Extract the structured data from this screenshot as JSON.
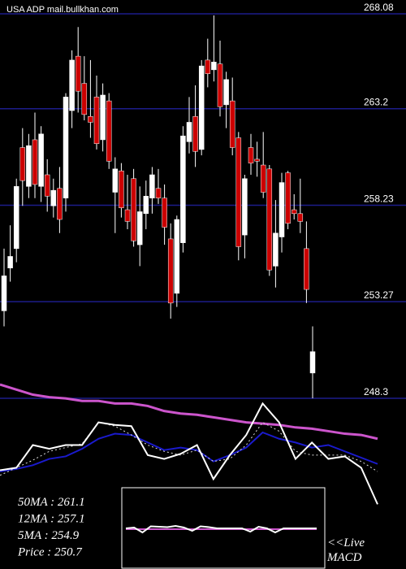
{
  "chart_data": [
    {
      "type": "candlestick",
      "title": "USA ADP mail.bullkhan.com",
      "open": [
        252.8,
        255.0,
        256.0,
        261.2,
        259.2,
        261.6,
        259.2,
        259.8,
        258.2,
        259.1,
        258.6,
        263.1,
        265.9,
        264.5,
        262.8,
        263.8,
        261.6,
        263.6,
        258.9,
        260.0,
        258.0,
        259.6,
        256.2,
        257.8,
        258.6,
        259.1,
        258.6,
        256.5,
        253.7,
        256.3,
        261.5,
        262.8,
        261.1,
        265.7,
        265.2,
        265.5,
        263.4,
        263.6,
        261.7,
        256.7,
        261.2,
        260.6,
        260.3,
        260.1,
        255.1,
        256.6,
        259.9,
        258.0,
        257.8,
        256.0,
        249.6
      ],
      "high": [
        256.0,
        257.2,
        259.6,
        262.2,
        261.9,
        263.0,
        262.3,
        260.6,
        259.6,
        260.2,
        264.0,
        266.2,
        267.4,
        265.9,
        265.7,
        264.9,
        264.5,
        264.0,
        260.7,
        260.4,
        259.8,
        260.1,
        259.2,
        259.5,
        260.2,
        260.1,
        259.3,
        257.3,
        257.7,
        262.3,
        263.8,
        264.4,
        265.7,
        266.8,
        268.0,
        266.7,
        265.1,
        264.8,
        262.0,
        259.8,
        261.9,
        261.5,
        262.0,
        260.3,
        258.5,
        259.9,
        260.0,
        258.8,
        259.6,
        257.4,
        252.0
      ],
      "low": [
        252.0,
        254.3,
        255.3,
        258.2,
        258.6,
        258.6,
        258.4,
        257.9,
        257.6,
        256.8,
        257.9,
        262.2,
        263.0,
        262.6,
        261.7,
        261.1,
        261.0,
        260.1,
        256.8,
        257.6,
        257.0,
        256.1,
        255.1,
        257.0,
        257.8,
        258.3,
        256.2,
        252.4,
        253.0,
        255.8,
        260.9,
        260.2,
        260.8,
        264.3,
        264.6,
        262.8,
        262.2,
        260.8,
        255.4,
        255.5,
        259.8,
        259.7,
        258.6,
        254.6,
        254.0,
        255.8,
        257.0,
        257.5,
        256.8,
        253.2,
        248.3
      ],
      "close": [
        254.6,
        255.6,
        259.2,
        259.5,
        261.3,
        259.3,
        261.9,
        258.7,
        259.0,
        257.5,
        263.8,
        265.7,
        264.1,
        262.9,
        262.5,
        261.4,
        263.9,
        260.5,
        260.1,
        258.1,
        257.4,
        256.4,
        257.9,
        258.7,
        259.8,
        258.6,
        257.1,
        253.2,
        257.5,
        261.8,
        262.5,
        261.0,
        265.4,
        265.0,
        265.6,
        263.3,
        264.7,
        261.2,
        256.1,
        259.6,
        260.4,
        260.5,
        258.9,
        254.9,
        256.8,
        259.4,
        257.3,
        257.8,
        257.4,
        253.9,
        250.7
      ],
      "up_color": "#ffffff",
      "down_color": "#cc0000",
      "ylim": [
        248.3,
        268.08
      ],
      "yticks": [
        268.08,
        263.2,
        258.23,
        253.27,
        248.3
      ],
      "grid": true,
      "grid_color": "#1c1c8a"
    },
    {
      "type": "line",
      "ylim": [
        0,
        100
      ],
      "series": [
        {
          "name": "50MA",
          "color": "#cc55cc",
          "values": [
            98,
            94,
            90,
            88,
            87,
            85,
            85,
            83,
            83,
            81,
            77,
            75,
            74,
            72,
            70,
            68,
            67,
            66,
            64,
            63,
            61,
            59,
            58,
            55
          ]
        },
        {
          "name": "12MA",
          "color": "#1a1acc",
          "values": [
            29,
            31,
            34,
            39,
            41,
            47,
            55,
            59,
            58,
            52,
            46,
            48,
            46,
            37,
            42,
            48,
            60,
            55,
            52,
            48,
            50,
            45,
            40,
            35
          ]
        },
        {
          "name": "5MA",
          "color": "#dddddd",
          "dashed": true,
          "values": [
            26,
            32,
            38,
            45,
            48,
            51,
            68,
            65,
            58,
            50,
            45,
            42,
            46,
            37,
            39,
            50,
            68,
            61,
            45,
            42,
            42,
            42,
            37,
            29
          ]
        },
        {
          "name": "Price",
          "color": "#ffffff",
          "values": [
            30,
            32,
            50,
            47,
            50,
            50,
            68,
            66,
            65,
            42,
            39,
            43,
            50,
            23,
            42,
            58,
            83,
            68,
            39,
            52,
            39,
            41,
            32,
            3
          ]
        }
      ],
      "annotations": [
        "50MA : 261.1",
        "12MA : 257.1",
        "5MA : 254.9",
        "Price   : 250.7"
      ]
    },
    {
      "type": "line",
      "title": "MACD",
      "subtitle": "<<Live",
      "ylim": [
        -1,
        1
      ],
      "series": [
        {
          "name": "signal",
          "color": "#cc55cc",
          "values": [
            -0.02,
            -0.02,
            -0.02,
            -0.02,
            -0.02,
            -0.02,
            -0.02,
            -0.02,
            -0.02,
            -0.02,
            -0.02,
            -0.02,
            -0.02,
            -0.02,
            -0.02,
            -0.02,
            -0.02,
            -0.02,
            -0.02,
            -0.02,
            -0.02,
            -0.02,
            -0.02,
            -0.02
          ]
        },
        {
          "name": "macd",
          "color": "#ffffff",
          "values": [
            0,
            0.02,
            -0.1,
            0.05,
            0.04,
            0.03,
            0.06,
            0.02,
            -0.06,
            0.05,
            0.03,
            0,
            0,
            0,
            0,
            -0.08,
            0.04,
            0,
            -0.1,
            0,
            0,
            0,
            0,
            0
          ]
        }
      ]
    }
  ]
}
